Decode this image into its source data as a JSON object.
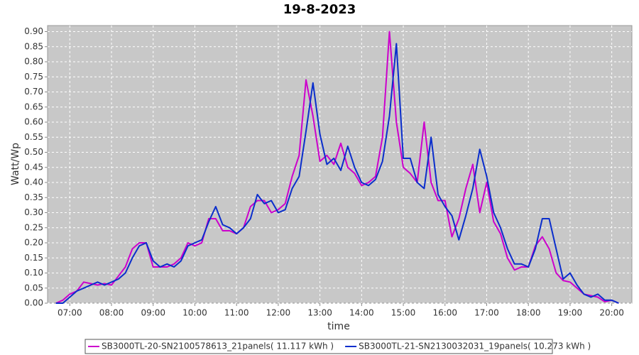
{
  "chart_data": {
    "type": "line",
    "title": "19-8-2023",
    "x_label": "time",
    "y_label": "Watt/Wp",
    "xlim": [
      "06:28",
      "20:29"
    ],
    "xticks": [
      "07:00",
      "08:00",
      "09:00",
      "10:00",
      "11:00",
      "12:00",
      "13:00",
      "14:00",
      "15:00",
      "16:00",
      "17:00",
      "18:00",
      "19:00",
      "20:00"
    ],
    "ylim": [
      0,
      0.92
    ],
    "yticks": [
      {
        "value": 0,
        "label": "0.00"
      },
      {
        "value": 0.05,
        "label": "0.05"
      },
      {
        "value": 0.1,
        "label": "0.10"
      },
      {
        "value": 0.15,
        "label": "0.15"
      },
      {
        "value": 0.2,
        "label": "0.20"
      },
      {
        "value": 0.25,
        "label": "0.25"
      },
      {
        "value": 0.3,
        "label": "0.30"
      },
      {
        "value": 0.35,
        "label": "0.35"
      },
      {
        "value": 0.4,
        "label": "0.40"
      },
      {
        "value": 0.45,
        "label": "0.45"
      },
      {
        "value": 0.5,
        "label": "0.50"
      },
      {
        "value": 0.55,
        "label": "0.55"
      },
      {
        "value": 0.6,
        "label": "0.60"
      },
      {
        "value": 0.65,
        "label": "0.65"
      },
      {
        "value": 0.7,
        "label": "0.70"
      },
      {
        "value": 0.75,
        "label": "0.75"
      },
      {
        "value": 0.8,
        "label": "0.80"
      },
      {
        "value": 0.85,
        "label": "0.85"
      },
      {
        "value": 0.9,
        "label": "0.90"
      }
    ],
    "grid": true,
    "legend": "bottom",
    "x": [
      "06:40",
      "06:50",
      "07:00",
      "07:10",
      "07:20",
      "07:30",
      "07:40",
      "07:50",
      "08:00",
      "08:10",
      "08:20",
      "08:30",
      "08:40",
      "08:50",
      "09:00",
      "09:10",
      "09:20",
      "09:30",
      "09:40",
      "09:50",
      "10:00",
      "10:10",
      "10:20",
      "10:30",
      "10:40",
      "10:50",
      "11:00",
      "11:10",
      "11:20",
      "11:30",
      "11:40",
      "11:50",
      "12:00",
      "12:10",
      "12:20",
      "12:30",
      "12:40",
      "12:50",
      "13:00",
      "13:10",
      "13:20",
      "13:30",
      "13:40",
      "13:50",
      "14:00",
      "14:10",
      "14:20",
      "14:30",
      "14:40",
      "14:50",
      "15:00",
      "15:10",
      "15:20",
      "15:30",
      "15:40",
      "15:50",
      "16:00",
      "16:10",
      "16:20",
      "16:30",
      "16:40",
      "16:50",
      "17:00",
      "17:10",
      "17:20",
      "17:30",
      "17:40",
      "17:50",
      "18:00",
      "18:10",
      "18:20",
      "18:30",
      "18:40",
      "18:50",
      "19:00",
      "19:10",
      "19:20",
      "19:30",
      "19:40",
      "19:50",
      "20:00",
      "20:10"
    ],
    "series": [
      {
        "name": "SB3000TL-20-SN2100578613_21panels( 11.117 kWh )",
        "color": "#cc00cc",
        "values": [
          0.0,
          0.01,
          0.03,
          0.04,
          0.07,
          0.065,
          0.06,
          0.065,
          0.06,
          0.09,
          0.12,
          0.18,
          0.2,
          0.2,
          0.12,
          0.12,
          0.12,
          0.13,
          0.15,
          0.2,
          0.19,
          0.2,
          0.28,
          0.28,
          0.24,
          0.24,
          0.23,
          0.25,
          0.32,
          0.34,
          0.34,
          0.3,
          0.31,
          0.33,
          0.42,
          0.49,
          0.74,
          0.62,
          0.47,
          0.49,
          0.46,
          0.53,
          0.45,
          0.43,
          0.39,
          0.4,
          0.42,
          0.55,
          0.9,
          0.6,
          0.45,
          0.43,
          0.4,
          0.6,
          0.4,
          0.34,
          0.34,
          0.22,
          0.28,
          0.38,
          0.46,
          0.3,
          0.4,
          0.27,
          0.23,
          0.15,
          0.11,
          0.12,
          0.12,
          0.19,
          0.22,
          0.18,
          0.1,
          0.075,
          0.07,
          0.05,
          0.03,
          0.025,
          0.02,
          0.005,
          0.01,
          0.0
        ]
      },
      {
        "name": "SB3000TL-21-SN2130032031_19panels( 10.273 kWh )",
        "color": "#0a2ecc",
        "values": [
          0.0,
          0.0,
          0.02,
          0.04,
          0.05,
          0.06,
          0.07,
          0.06,
          0.07,
          0.08,
          0.1,
          0.15,
          0.19,
          0.2,
          0.14,
          0.12,
          0.13,
          0.12,
          0.14,
          0.19,
          0.2,
          0.21,
          0.27,
          0.32,
          0.26,
          0.25,
          0.23,
          0.25,
          0.28,
          0.36,
          0.33,
          0.34,
          0.3,
          0.31,
          0.38,
          0.42,
          0.57,
          0.73,
          0.56,
          0.46,
          0.48,
          0.44,
          0.52,
          0.45,
          0.4,
          0.39,
          0.41,
          0.47,
          0.62,
          0.86,
          0.48,
          0.48,
          0.4,
          0.38,
          0.55,
          0.36,
          0.32,
          0.29,
          0.21,
          0.29,
          0.38,
          0.51,
          0.42,
          0.3,
          0.25,
          0.18,
          0.13,
          0.13,
          0.12,
          0.18,
          0.28,
          0.28,
          0.18,
          0.08,
          0.1,
          0.06,
          0.03,
          0.02,
          0.03,
          0.01,
          0.01,
          0.0
        ]
      }
    ]
  }
}
